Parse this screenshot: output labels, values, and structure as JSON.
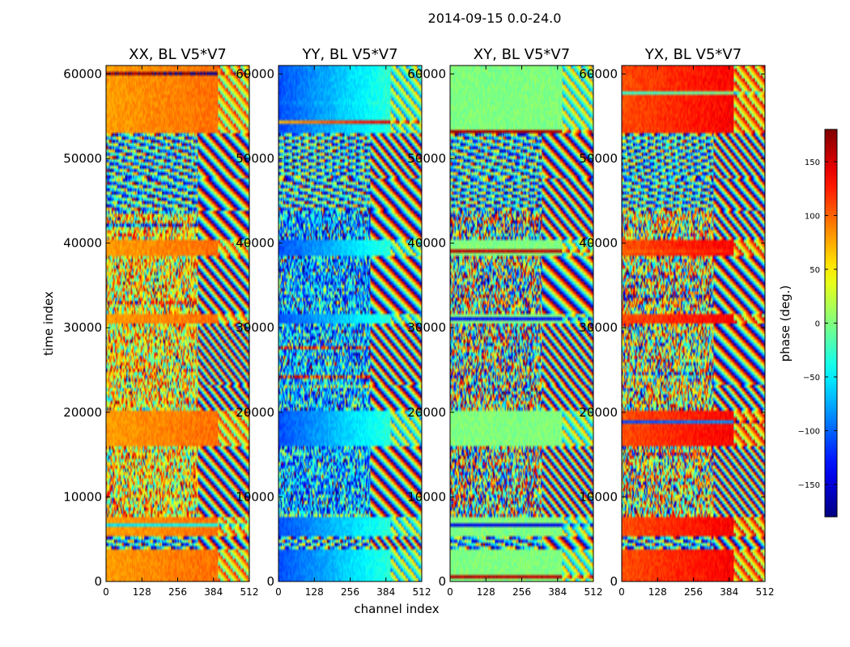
{
  "figure": {
    "suptitle": "2014-09-15 0.0-24.0",
    "xlabel": "channel index",
    "ylabel": "time index",
    "colorbar": {
      "label": "phase (deg.)",
      "range": [
        -180,
        180
      ],
      "ticks": [
        -150,
        -100,
        -50,
        0,
        50,
        100,
        150
      ],
      "tick_labels": [
        "−150",
        "−100",
        "−50",
        "0",
        "50",
        "100",
        "150"
      ],
      "colormap": "jet"
    }
  },
  "chart_data": [
    {
      "type": "heatmap",
      "title": "XX, BL V5*V7",
      "x_ticks": [
        0,
        128,
        256,
        384,
        512
      ],
      "y_ticks": [
        0,
        10000,
        20000,
        30000,
        40000,
        50000,
        60000
      ],
      "xlim": [
        0,
        512
      ],
      "ylim": [
        0,
        61000
      ],
      "zlabel": "phase (deg.)",
      "zlim": [
        -180,
        180
      ]
    },
    {
      "type": "heatmap",
      "title": "YY, BL V5*V7",
      "x_ticks": [
        0,
        128,
        256,
        384,
        512
      ],
      "y_ticks": [
        0,
        10000,
        20000,
        30000,
        40000,
        50000,
        60000
      ],
      "xlim": [
        0,
        512
      ],
      "ylim": [
        0,
        61000
      ],
      "zlabel": "phase (deg.)",
      "zlim": [
        -180,
        180
      ]
    },
    {
      "type": "heatmap",
      "title": "XY, BL V5*V7",
      "x_ticks": [
        0,
        128,
        256,
        384,
        512
      ],
      "y_ticks": [
        0,
        10000,
        20000,
        30000,
        40000,
        50000,
        60000
      ],
      "xlim": [
        0,
        512
      ],
      "ylim": [
        0,
        61000
      ],
      "zlabel": "phase (deg.)",
      "zlim": [
        -180,
        180
      ]
    },
    {
      "type": "heatmap",
      "title": "YX, BL V5*V7",
      "x_ticks": [
        0,
        128,
        256,
        384,
        512
      ],
      "y_ticks": [
        0,
        10000,
        20000,
        30000,
        40000,
        50000,
        60000
      ],
      "xlim": [
        0,
        512
      ],
      "ylim": [
        0,
        61000
      ],
      "zlabel": "phase (deg.)",
      "zlim": [
        -180,
        180
      ]
    }
  ]
}
